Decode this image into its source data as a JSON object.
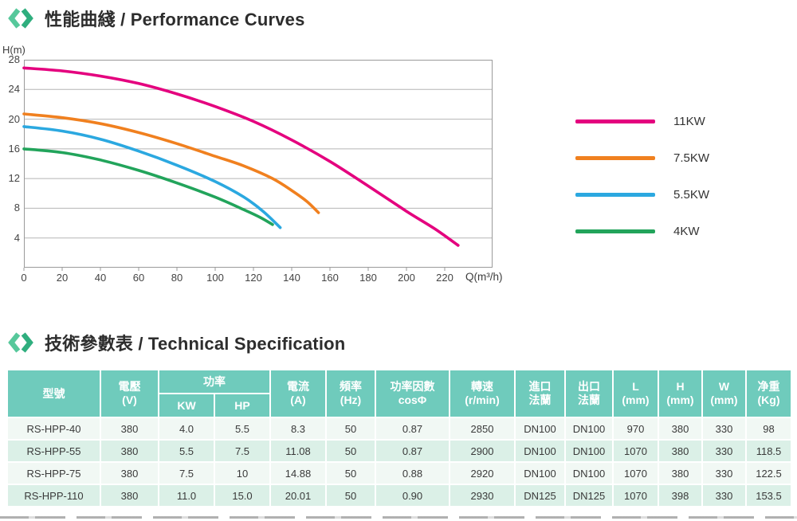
{
  "sections": {
    "performance": {
      "title": "性能曲綫 / Performance Curves"
    },
    "spec": {
      "title": "技術參數表 / Technical Specification"
    }
  },
  "chart_data": {
    "type": "line",
    "title": "",
    "xlabel": "Q(m³/h)",
    "ylabel": "H(m)",
    "xlim": [
      0,
      245
    ],
    "ylim": [
      0,
      28
    ],
    "x_ticks": [
      0,
      20,
      40,
      60,
      80,
      100,
      120,
      140,
      160,
      180,
      200,
      220
    ],
    "y_ticks": [
      4,
      8,
      12,
      16,
      20,
      24,
      28
    ],
    "grid": true,
    "legend_position": "right",
    "series": [
      {
        "name": "11KW",
        "color": "#E4007E",
        "points": [
          [
            0,
            26.9
          ],
          [
            20,
            26.5
          ],
          [
            40,
            25.8
          ],
          [
            60,
            24.8
          ],
          [
            80,
            23.4
          ],
          [
            100,
            21.7
          ],
          [
            120,
            19.7
          ],
          [
            140,
            17.2
          ],
          [
            160,
            14.3
          ],
          [
            180,
            11.0
          ],
          [
            200,
            7.6
          ],
          [
            215,
            5.2
          ],
          [
            227,
            3.0
          ]
        ]
      },
      {
        "name": "7.5KW",
        "color": "#F0801F",
        "points": [
          [
            0,
            20.7
          ],
          [
            20,
            20.2
          ],
          [
            40,
            19.4
          ],
          [
            60,
            18.2
          ],
          [
            80,
            16.7
          ],
          [
            100,
            15.0
          ],
          [
            115,
            13.7
          ],
          [
            130,
            12.0
          ],
          [
            140,
            10.4
          ],
          [
            148,
            8.9
          ],
          [
            154,
            7.4
          ]
        ]
      },
      {
        "name": "5.5KW",
        "color": "#2BA8E0",
        "points": [
          [
            0,
            19.0
          ],
          [
            20,
            18.4
          ],
          [
            40,
            17.3
          ],
          [
            60,
            15.7
          ],
          [
            80,
            13.8
          ],
          [
            100,
            11.6
          ],
          [
            115,
            9.5
          ],
          [
            125,
            7.6
          ],
          [
            134,
            5.4
          ]
        ]
      },
      {
        "name": "4KW",
        "color": "#22A45B",
        "points": [
          [
            0,
            16.0
          ],
          [
            20,
            15.5
          ],
          [
            40,
            14.5
          ],
          [
            60,
            13.1
          ],
          [
            80,
            11.4
          ],
          [
            100,
            9.5
          ],
          [
            115,
            7.8
          ],
          [
            124,
            6.7
          ],
          [
            130,
            5.8
          ]
        ]
      }
    ]
  },
  "table": {
    "header": {
      "model": "型號",
      "voltage": "電壓\n(V)",
      "power": "功率",
      "power_kw": "KW",
      "power_hp": "HP",
      "current": "電流\n(A)",
      "frequency": "頻率\n(Hz)",
      "power_factor": "功率因數\ncosΦ",
      "speed": "轉速\n(r/min)",
      "inlet_flange": "進口\n法蘭",
      "outlet_flange": "出口\n法蘭",
      "length": "L\n(mm)",
      "height": "H\n(mm)",
      "width": "W\n(mm)",
      "weight": "净重\n(Kg)"
    },
    "rows": [
      [
        "RS-HPP-40",
        "380",
        "4.0",
        "5.5",
        "8.3",
        "50",
        "0.87",
        "2850",
        "DN100",
        "DN100",
        "970",
        "380",
        "330",
        "98"
      ],
      [
        "RS-HPP-55",
        "380",
        "5.5",
        "7.5",
        "11.08",
        "50",
        "0.87",
        "2900",
        "DN100",
        "DN100",
        "1070",
        "380",
        "330",
        "118.5"
      ],
      [
        "RS-HPP-75",
        "380",
        "7.5",
        "10",
        "14.88",
        "50",
        "0.88",
        "2920",
        "DN100",
        "DN100",
        "1070",
        "380",
        "330",
        "122.5"
      ],
      [
        "RS-HPP-110",
        "380",
        "11.0",
        "15.0",
        "20.01",
        "50",
        "0.90",
        "2930",
        "DN125",
        "DN125",
        "1070",
        "398",
        "330",
        "153.5"
      ]
    ]
  },
  "colors": {
    "table_header_bg": "#6FCBBC",
    "table_row_odd": "#F1F8F4",
    "table_row_even": "#DBF0E7",
    "grid_line": "#b5b5b5",
    "plot_border": "#9a9a9a",
    "icon_green_light": "#56C89B",
    "icon_green_dark": "#2FAE7E",
    "curve_11kw": "#E4007E",
    "curve_7_5kw": "#F0801F",
    "curve_5_5kw": "#2BA8E0",
    "curve_4kw": "#22A45B"
  }
}
